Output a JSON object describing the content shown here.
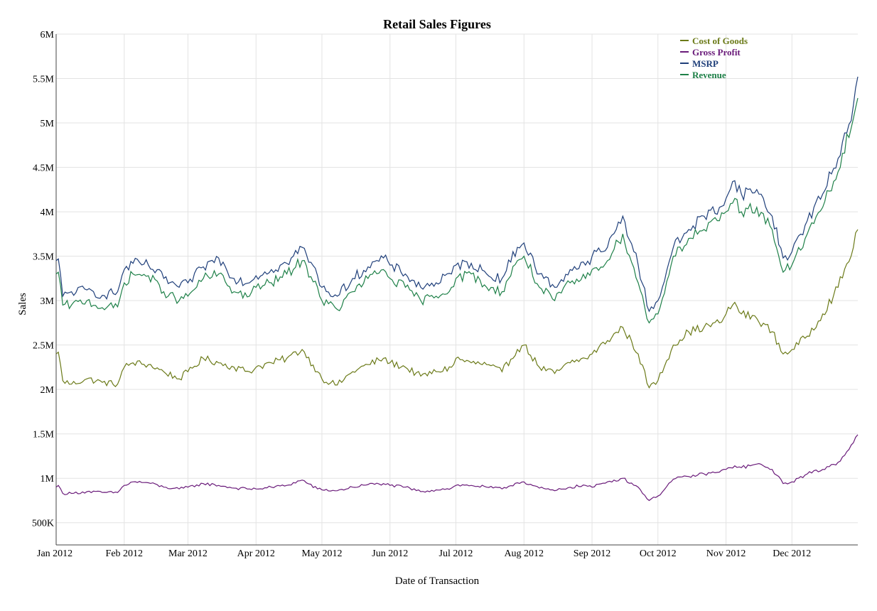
{
  "chart_data": {
    "type": "line",
    "title": "Retail Sales Figures",
    "xlabel": "Date of Transaction",
    "ylabel": "Sales",
    "xlim": [
      "2012-01-01",
      "2012-12-31"
    ],
    "ylim": [
      250000,
      6000000
    ],
    "y_ticks": [
      {
        "value": 500000,
        "label": "500K"
      },
      {
        "value": 1000000,
        "label": "1M"
      },
      {
        "value": 1500000,
        "label": "1.5M"
      },
      {
        "value": 2000000,
        "label": "2M"
      },
      {
        "value": 2500000,
        "label": "2.5M"
      },
      {
        "value": 3000000,
        "label": "3M"
      },
      {
        "value": 3500000,
        "label": "3.5M"
      },
      {
        "value": 4000000,
        "label": "4M"
      },
      {
        "value": 4500000,
        "label": "4.5M"
      },
      {
        "value": 5000000,
        "label": "5M"
      },
      {
        "value": 5500000,
        "label": "5.5M"
      },
      {
        "value": 6000000,
        "label": "6M"
      }
    ],
    "x_ticks": [
      {
        "value": "2012-01-01",
        "label": "Jan 2012"
      },
      {
        "value": "2012-02-01",
        "label": "Feb 2012"
      },
      {
        "value": "2012-03-01",
        "label": "Mar 2012"
      },
      {
        "value": "2012-04-01",
        "label": "Apr 2012"
      },
      {
        "value": "2012-05-01",
        "label": "May 2012"
      },
      {
        "value": "2012-06-01",
        "label": "Jun 2012"
      },
      {
        "value": "2012-07-01",
        "label": "Jul 2012"
      },
      {
        "value": "2012-08-01",
        "label": "Aug 2012"
      },
      {
        "value": "2012-09-01",
        "label": "Sep 2012"
      },
      {
        "value": "2012-10-01",
        "label": "Oct 2012"
      },
      {
        "value": "2012-11-01",
        "label": "Nov 2012"
      },
      {
        "value": "2012-12-01",
        "label": "Dec 2012"
      }
    ],
    "grid": true,
    "legend_position": "top-right",
    "series": [
      {
        "name": "Cost of Goods",
        "color": "#6b7a18",
        "x": [
          "2012-01-01",
          "2012-01-02",
          "2012-01-04",
          "2012-01-08",
          "2012-01-15",
          "2012-01-22",
          "2012-01-29",
          "2012-02-01",
          "2012-02-05",
          "2012-02-12",
          "2012-02-19",
          "2012-02-26",
          "2012-03-01",
          "2012-03-08",
          "2012-03-15",
          "2012-03-22",
          "2012-03-29",
          "2012-04-01",
          "2012-04-08",
          "2012-04-15",
          "2012-04-22",
          "2012-04-29",
          "2012-05-01",
          "2012-05-08",
          "2012-05-15",
          "2012-05-22",
          "2012-05-29",
          "2012-06-01",
          "2012-06-08",
          "2012-06-15",
          "2012-06-22",
          "2012-06-29",
          "2012-07-01",
          "2012-07-08",
          "2012-07-15",
          "2012-07-22",
          "2012-07-29",
          "2012-08-01",
          "2012-08-08",
          "2012-08-15",
          "2012-08-22",
          "2012-08-29",
          "2012-09-01",
          "2012-09-08",
          "2012-09-15",
          "2012-09-22",
          "2012-09-27",
          "2012-10-01",
          "2012-10-08",
          "2012-10-15",
          "2012-10-22",
          "2012-10-29",
          "2012-11-01",
          "2012-11-05",
          "2012-11-08",
          "2012-11-15",
          "2012-11-22",
          "2012-11-27",
          "2012-12-01",
          "2012-12-08",
          "2012-12-15",
          "2012-12-22",
          "2012-12-29",
          "2012-12-31"
        ],
        "values": [
          2400000,
          2420000,
          2100000,
          2060000,
          2120000,
          2080000,
          2060000,
          2250000,
          2300000,
          2280000,
          2200000,
          2120000,
          2200000,
          2350000,
          2300000,
          2250000,
          2200000,
          2250000,
          2300000,
          2350000,
          2450000,
          2200000,
          2120000,
          2050000,
          2200000,
          2280000,
          2350000,
          2300000,
          2250000,
          2150000,
          2200000,
          2250000,
          2350000,
          2300000,
          2280000,
          2200000,
          2450000,
          2500000,
          2250000,
          2180000,
          2300000,
          2350000,
          2400000,
          2550000,
          2700000,
          2400000,
          2020000,
          2100000,
          2500000,
          2650000,
          2700000,
          2750000,
          2850000,
          2980000,
          2850000,
          2800000,
          2650000,
          2400000,
          2450000,
          2600000,
          2850000,
          3150000,
          3600000,
          3800000
        ]
      },
      {
        "name": "Gross Profit",
        "color": "#6a1b7a",
        "x": [
          "2012-01-01",
          "2012-01-02",
          "2012-01-04",
          "2012-01-08",
          "2012-01-15",
          "2012-01-22",
          "2012-01-29",
          "2012-02-01",
          "2012-02-05",
          "2012-02-12",
          "2012-02-19",
          "2012-02-26",
          "2012-03-01",
          "2012-03-08",
          "2012-03-15",
          "2012-03-22",
          "2012-03-29",
          "2012-04-01",
          "2012-04-08",
          "2012-04-15",
          "2012-04-22",
          "2012-04-29",
          "2012-05-01",
          "2012-05-08",
          "2012-05-15",
          "2012-05-22",
          "2012-05-29",
          "2012-06-01",
          "2012-06-08",
          "2012-06-15",
          "2012-06-22",
          "2012-06-29",
          "2012-07-01",
          "2012-07-08",
          "2012-07-15",
          "2012-07-22",
          "2012-07-29",
          "2012-08-01",
          "2012-08-08",
          "2012-08-15",
          "2012-08-22",
          "2012-08-29",
          "2012-09-01",
          "2012-09-08",
          "2012-09-15",
          "2012-09-22",
          "2012-09-27",
          "2012-10-01",
          "2012-10-08",
          "2012-10-15",
          "2012-10-22",
          "2012-10-29",
          "2012-11-01",
          "2012-11-05",
          "2012-11-08",
          "2012-11-15",
          "2012-11-22",
          "2012-11-27",
          "2012-12-01",
          "2012-12-08",
          "2012-12-15",
          "2012-12-22",
          "2012-12-29",
          "2012-12-31"
        ],
        "values": [
          900000,
          920000,
          830000,
          830000,
          850000,
          840000,
          840000,
          920000,
          960000,
          950000,
          900000,
          880000,
          900000,
          940000,
          920000,
          890000,
          880000,
          880000,
          900000,
          920000,
          980000,
          880000,
          870000,
          860000,
          900000,
          930000,
          940000,
          920000,
          900000,
          850000,
          870000,
          890000,
          920000,
          920000,
          900000,
          880000,
          950000,
          960000,
          890000,
          860000,
          900000,
          920000,
          900000,
          960000,
          1000000,
          900000,
          750000,
          800000,
          990000,
          1020000,
          1050000,
          1070000,
          1100000,
          1140000,
          1120000,
          1160000,
          1100000,
          940000,
          960000,
          1050000,
          1100000,
          1180000,
          1400000,
          1490000
        ]
      },
      {
        "name": "MSRP",
        "color": "#1f3f7a",
        "x": [
          "2012-01-01",
          "2012-01-02",
          "2012-01-04",
          "2012-01-08",
          "2012-01-15",
          "2012-01-22",
          "2012-01-29",
          "2012-02-01",
          "2012-02-05",
          "2012-02-12",
          "2012-02-19",
          "2012-02-26",
          "2012-03-01",
          "2012-03-08",
          "2012-03-15",
          "2012-03-22",
          "2012-03-29",
          "2012-04-01",
          "2012-04-08",
          "2012-04-15",
          "2012-04-22",
          "2012-04-29",
          "2012-05-01",
          "2012-05-08",
          "2012-05-15",
          "2012-05-22",
          "2012-05-29",
          "2012-06-01",
          "2012-06-08",
          "2012-06-15",
          "2012-06-22",
          "2012-06-29",
          "2012-07-01",
          "2012-07-08",
          "2012-07-15",
          "2012-07-22",
          "2012-07-29",
          "2012-08-01",
          "2012-08-08",
          "2012-08-15",
          "2012-08-22",
          "2012-08-29",
          "2012-09-01",
          "2012-09-08",
          "2012-09-15",
          "2012-09-22",
          "2012-09-27",
          "2012-10-01",
          "2012-10-08",
          "2012-10-15",
          "2012-10-22",
          "2012-10-29",
          "2012-11-01",
          "2012-11-05",
          "2012-11-08",
          "2012-11-15",
          "2012-11-22",
          "2012-11-27",
          "2012-12-01",
          "2012-12-08",
          "2012-12-15",
          "2012-12-22",
          "2012-12-29",
          "2012-12-31"
        ],
        "values": [
          3450000,
          3470000,
          3050000,
          3100000,
          3120000,
          3060000,
          3100000,
          3350000,
          3420000,
          3400000,
          3250000,
          3150000,
          3200000,
          3380000,
          3480000,
          3250000,
          3200000,
          3280000,
          3350000,
          3420000,
          3600000,
          3280000,
          3150000,
          3050000,
          3250000,
          3380000,
          3480000,
          3400000,
          3300000,
          3150000,
          3200000,
          3300000,
          3400000,
          3420000,
          3300000,
          3250000,
          3600000,
          3650000,
          3300000,
          3150000,
          3350000,
          3400000,
          3500000,
          3600000,
          3950000,
          3400000,
          2880000,
          3000000,
          3600000,
          3800000,
          3950000,
          4050000,
          4150000,
          4350000,
          4200000,
          4250000,
          3950000,
          3480000,
          3550000,
          3900000,
          4200000,
          4600000,
          5200000,
          5520000
        ]
      },
      {
        "name": "Revenue",
        "color": "#1e8048",
        "x": [
          "2012-01-01",
          "2012-01-02",
          "2012-01-04",
          "2012-01-08",
          "2012-01-15",
          "2012-01-22",
          "2012-01-29",
          "2012-02-01",
          "2012-02-05",
          "2012-02-12",
          "2012-02-19",
          "2012-02-26",
          "2012-03-01",
          "2012-03-08",
          "2012-03-15",
          "2012-03-22",
          "2012-03-29",
          "2012-04-01",
          "2012-04-08",
          "2012-04-15",
          "2012-04-22",
          "2012-04-29",
          "2012-05-01",
          "2012-05-08",
          "2012-05-15",
          "2012-05-22",
          "2012-05-29",
          "2012-06-01",
          "2012-06-08",
          "2012-06-15",
          "2012-06-22",
          "2012-06-29",
          "2012-07-01",
          "2012-07-08",
          "2012-07-15",
          "2012-07-22",
          "2012-07-29",
          "2012-08-01",
          "2012-08-08",
          "2012-08-15",
          "2012-08-22",
          "2012-08-29",
          "2012-09-01",
          "2012-09-08",
          "2012-09-15",
          "2012-09-22",
          "2012-09-27",
          "2012-10-01",
          "2012-10-08",
          "2012-10-15",
          "2012-10-22",
          "2012-10-29",
          "2012-11-01",
          "2012-11-05",
          "2012-11-08",
          "2012-11-15",
          "2012-11-22",
          "2012-11-27",
          "2012-12-01",
          "2012-12-08",
          "2012-12-15",
          "2012-12-22",
          "2012-12-29",
          "2012-12-31"
        ],
        "values": [
          3300000,
          3320000,
          2950000,
          2950000,
          3000000,
          2920000,
          2930000,
          3200000,
          3300000,
          3280000,
          3100000,
          3000000,
          3050000,
          3250000,
          3300000,
          3100000,
          3050000,
          3150000,
          3200000,
          3300000,
          3450000,
          3150000,
          3000000,
          2900000,
          3100000,
          3250000,
          3350000,
          3250000,
          3150000,
          3000000,
          3050000,
          3150000,
          3250000,
          3300000,
          3150000,
          3100000,
          3450000,
          3500000,
          3150000,
          3000000,
          3200000,
          3250000,
          3350000,
          3450000,
          3750000,
          3200000,
          2750000,
          2850000,
          3500000,
          3700000,
          3800000,
          3900000,
          4000000,
          4150000,
          4000000,
          4050000,
          3800000,
          3320000,
          3400000,
          3750000,
          4050000,
          4450000,
          5050000,
          5280000
        ]
      }
    ]
  }
}
